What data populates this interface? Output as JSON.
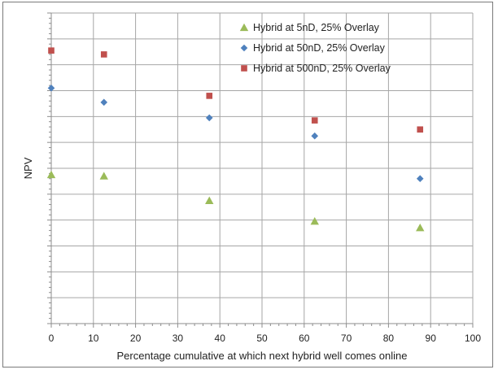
{
  "chart_data": {
    "type": "scatter",
    "title": "",
    "xlabel": "Percentage cumulative at which next hybrid well comes online",
    "ylabel": "NPV",
    "xlim": [
      0,
      100
    ],
    "ylim": [
      0,
      12
    ],
    "x_ticks": [
      "0",
      "10",
      "20",
      "30",
      "40",
      "50",
      "60",
      "70",
      "80",
      "90",
      "100"
    ],
    "y_tick_labels_shown": false,
    "grid": true,
    "legend_position": "top-center-right",
    "series": [
      {
        "name": "Hybrid at 5nD, 25% Overlay",
        "marker": "triangle",
        "color": "#9bbb59",
        "x": [
          0,
          12.5,
          37.5,
          62.5,
          87.5
        ],
        "y": [
          5.75,
          5.7,
          4.75,
          3.95,
          3.7
        ]
      },
      {
        "name": "Hybrid at 50nD, 25% Overlay",
        "marker": "diamond",
        "color": "#4f81bd",
        "x": [
          0,
          12.5,
          37.5,
          62.5,
          87.5
        ],
        "y": [
          9.1,
          8.55,
          7.95,
          7.25,
          5.6
        ]
      },
      {
        "name": "Hybrid at 500nD, 25% Overlay",
        "marker": "square",
        "color": "#c0504d",
        "x": [
          0,
          12.5,
          37.5,
          62.5,
          87.5
        ],
        "y": [
          10.55,
          10.4,
          8.8,
          7.85,
          7.5
        ]
      }
    ]
  }
}
